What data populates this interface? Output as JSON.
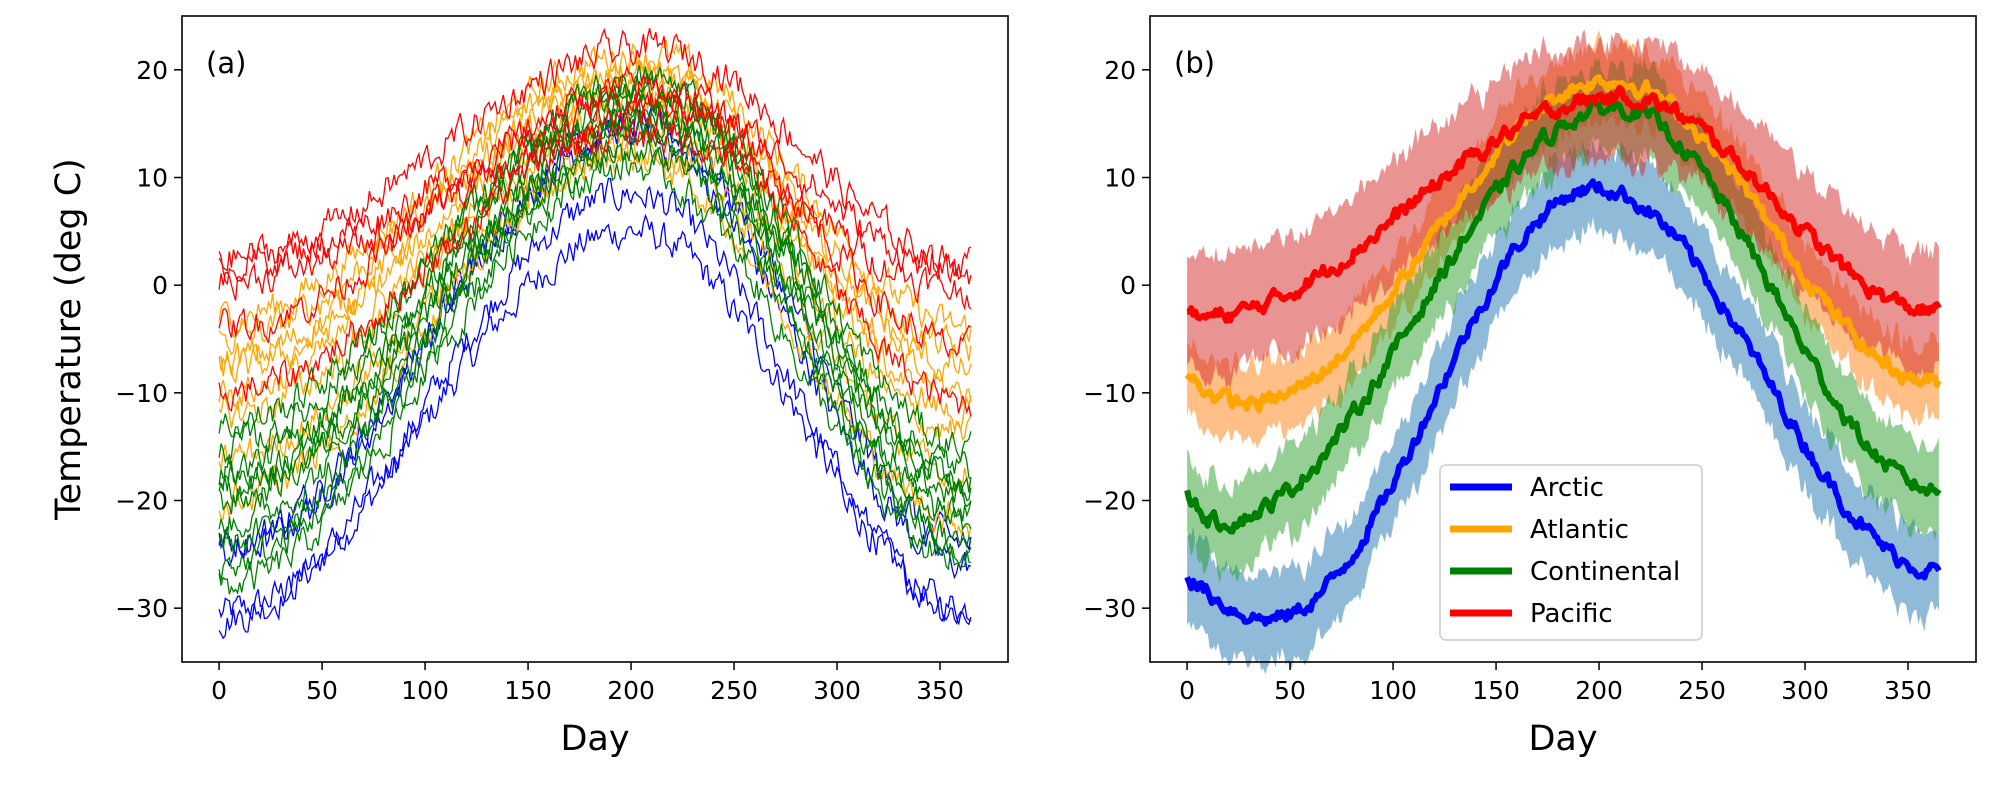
{
  "figure": {
    "ylabel": "Temperature  (deg C)",
    "xlabel": "Day"
  },
  "colors": {
    "Arctic": "#0000ff",
    "Atlantic": "#ffa500",
    "Continental": "#008000",
    "Pacific": "#ff0000",
    "Arctic_band": "#1f77b4",
    "Atlantic_band": "#ff7f0e",
    "Continental_band": "#2ca02c",
    "Pacific_band": "#d62728"
  },
  "chart_data": [
    {
      "type": "line",
      "panel_label": "(a)",
      "xlabel": "Day",
      "ylabel": "Temperature  (deg C)",
      "xlim": [
        -18,
        383
      ],
      "ylim": [
        -35,
        25
      ],
      "xticks": [
        0,
        50,
        100,
        150,
        200,
        250,
        300,
        350
      ],
      "yticks": [
        -30,
        -20,
        -10,
        0,
        10,
        20
      ],
      "day_range": [
        0,
        365
      ],
      "legend": "none",
      "grid": false,
      "series": [
        {
          "region": "Arctic",
          "start": -30.5,
          "peak": 5,
          "peak_day": 200,
          "end": -30
        },
        {
          "region": "Arctic",
          "start": -31,
          "peak": 8.5,
          "peak_day": 200,
          "end": -30.5
        },
        {
          "region": "Arctic",
          "start": -24,
          "peak": 14,
          "peak_day": 200,
          "end": -26
        },
        {
          "region": "Arctic",
          "start": -25,
          "peak": 15,
          "peak_day": 205,
          "end": -24
        },
        {
          "region": "Atlantic",
          "start": -3,
          "peak": 21.5,
          "peak_day": 205,
          "end": -4
        },
        {
          "region": "Atlantic",
          "start": -5,
          "peak": 20,
          "peak_day": 200,
          "end": -6
        },
        {
          "region": "Atlantic",
          "start": -7,
          "peak": 19.5,
          "peak_day": 205,
          "end": -8
        },
        {
          "region": "Atlantic",
          "start": -8,
          "peak": 18,
          "peak_day": 205,
          "end": -10
        },
        {
          "region": "Atlantic",
          "start": -10,
          "peak": 17,
          "peak_day": 210,
          "end": -12
        },
        {
          "region": "Atlantic",
          "start": -12,
          "peak": 15,
          "peak_day": 205,
          "end": -14
        },
        {
          "region": "Atlantic",
          "start": -16,
          "peak": 13,
          "peak_day": 205,
          "end": -18
        },
        {
          "region": "Atlantic",
          "start": -20,
          "peak": 12,
          "peak_day": 200,
          "end": -22
        },
        {
          "region": "Continental",
          "start": -13,
          "peak": 19,
          "peak_day": 210,
          "end": -15
        },
        {
          "region": "Continental",
          "start": -15,
          "peak": 18.5,
          "peak_day": 205,
          "end": -17
        },
        {
          "region": "Continental",
          "start": -17,
          "peak": 18,
          "peak_day": 210,
          "end": -18
        },
        {
          "region": "Continental",
          "start": -18,
          "peak": 17,
          "peak_day": 205,
          "end": -19
        },
        {
          "region": "Continental",
          "start": -19,
          "peak": 16,
          "peak_day": 210,
          "end": -20
        },
        {
          "region": "Continental",
          "start": -20,
          "peak": 15.5,
          "peak_day": 205,
          "end": -21
        },
        {
          "region": "Continental",
          "start": -22,
          "peak": 15,
          "peak_day": 210,
          "end": -22
        },
        {
          "region": "Continental",
          "start": -24,
          "peak": 14,
          "peak_day": 205,
          "end": -24
        },
        {
          "region": "Continental",
          "start": -26,
          "peak": 12.5,
          "peak_day": 205,
          "end": -25
        },
        {
          "region": "Continental",
          "start": -28,
          "peak": 11,
          "peak_day": 200,
          "end": -26
        },
        {
          "region": "Pacific",
          "start": 2.5,
          "peak": 22,
          "peak_day": 210,
          "end": 2
        },
        {
          "region": "Pacific",
          "start": 2,
          "peak": 17,
          "peak_day": 215,
          "end": 1
        },
        {
          "region": "Pacific",
          "start": 0.5,
          "peak": 14,
          "peak_day": 210,
          "end": -0.5
        },
        {
          "region": "Pacific",
          "start": -4,
          "peak": 18.5,
          "peak_day": 210,
          "end": -6
        },
        {
          "region": "Pacific",
          "start": -10,
          "peak": 16,
          "peak_day": 215,
          "end": -11
        }
      ]
    },
    {
      "type": "area",
      "panel_label": "(b)",
      "xlabel": "Day",
      "xlim": [
        -18,
        383
      ],
      "ylim": [
        -35,
        25
      ],
      "xticks": [
        0,
        50,
        100,
        150,
        200,
        250,
        300,
        350
      ],
      "yticks": [
        -30,
        -20,
        -10,
        0,
        10,
        20
      ],
      "legend": "lower-center",
      "grid": false,
      "series": [
        {
          "name": "Arctic",
          "mean_start": -27,
          "mean_min": -31,
          "mean_min_day": 40,
          "mean_peak": 9,
          "mean_peak_day": 198,
          "mean_end": -26.5,
          "band_halfwidth": 4
        },
        {
          "name": "Atlantic",
          "mean_start": -8.5,
          "mean_min": -11,
          "mean_min_day": 30,
          "mean_peak": 19,
          "mean_peak_day": 205,
          "mean_end": -9,
          "band_halfwidth": 3.5
        },
        {
          "name": "Continental",
          "mean_start": -19,
          "mean_min": -22,
          "mean_min_day": 15,
          "mean_peak": 16.5,
          "mean_peak_day": 208,
          "mean_end": -19,
          "band_halfwidth": 4
        },
        {
          "name": "Pacific",
          "mean_start": -2,
          "mean_min": -3,
          "mean_min_day": 5,
          "mean_peak": 17.5,
          "mean_peak_day": 210,
          "mean_end": -2.5,
          "band_halfwidth": 5.5
        }
      ]
    }
  ]
}
